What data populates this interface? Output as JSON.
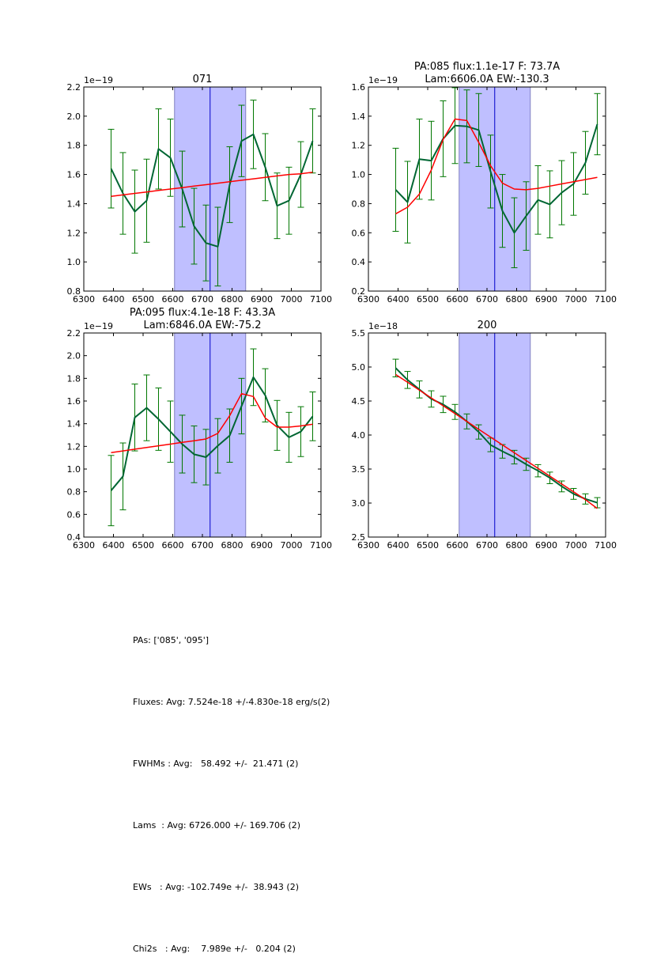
{
  "chart_data": [
    {
      "type": "line",
      "title": [
        "071"
      ],
      "xlabel": "",
      "ylabel": "",
      "offset_text": "1e−19",
      "xlim": [
        6300,
        7100
      ],
      "ylim": [
        0.8,
        2.2
      ],
      "xticks": [
        "6300",
        "6400",
        "6500",
        "6600",
        "6700",
        "6800",
        "6900",
        "7000",
        "7100"
      ],
      "yticks": [
        "0.8",
        "1.0",
        "1.2",
        "1.4",
        "1.6",
        "1.8",
        "2.0",
        "2.2"
      ],
      "ytick_values": [
        0.8,
        1.0,
        1.2,
        1.4,
        1.6,
        1.8,
        2.0,
        2.2
      ],
      "span": [
        6606,
        6846
      ],
      "vline": 6726,
      "x": [
        6392,
        6432,
        6472,
        6512,
        6552,
        6592,
        6632,
        6672,
        6712,
        6752,
        6792,
        6832,
        6872,
        6912,
        6952,
        6992,
        7032,
        7072
      ],
      "series": [
        {
          "name": "data",
          "color": "#006633",
          "values": [
            1.64,
            1.47,
            1.345,
            1.42,
            1.775,
            1.715,
            1.5,
            1.245,
            1.13,
            1.105,
            1.53,
            1.83,
            1.875,
            1.65,
            1.385,
            1.42,
            1.6,
            1.83
          ],
          "errors": [
            0.27,
            0.28,
            0.285,
            0.285,
            0.275,
            0.265,
            0.26,
            0.26,
            0.26,
            0.27,
            0.26,
            0.245,
            0.235,
            0.23,
            0.225,
            0.23,
            0.225,
            0.22
          ]
        },
        {
          "name": "fit",
          "color": "#ff0000",
          "values": [
            1.45,
            1.46,
            1.47,
            1.48,
            1.49,
            1.5,
            1.51,
            1.52,
            1.53,
            1.54,
            1.55,
            1.56,
            1.57,
            1.58,
            1.59,
            1.6,
            1.605,
            1.615
          ]
        }
      ],
      "grid": false
    },
    {
      "type": "line",
      "title": [
        "PA:085 flux:1.1e-17 F: 73.7A",
        "Lam:6606.0A EW:-130.3"
      ],
      "xlabel": "",
      "ylabel": "",
      "offset_text": "1e−19",
      "xlim": [
        6300,
        7100
      ],
      "ylim": [
        0.2,
        1.6
      ],
      "xticks": [
        "6300",
        "6400",
        "6500",
        "6600",
        "6700",
        "6800",
        "6900",
        "7000",
        "7100"
      ],
      "yticks": [
        "0.2",
        "0.4",
        "0.6",
        "0.8",
        "1.0",
        "1.2",
        "1.4",
        "1.6"
      ],
      "ytick_values": [
        0.2,
        0.4,
        0.6,
        0.8,
        1.0,
        1.2,
        1.4,
        1.6
      ],
      "span": [
        6606,
        6846
      ],
      "vline": 6726,
      "x": [
        6392,
        6432,
        6472,
        6512,
        6552,
        6592,
        6632,
        6672,
        6712,
        6752,
        6792,
        6832,
        6872,
        6912,
        6952,
        6992,
        7032,
        7072
      ],
      "series": [
        {
          "name": "data",
          "color": "#006633",
          "values": [
            0.895,
            0.81,
            1.105,
            1.095,
            1.245,
            1.335,
            1.33,
            1.305,
            1.02,
            0.75,
            0.6,
            0.715,
            0.825,
            0.795,
            0.875,
            0.935,
            1.08,
            1.345
          ],
          "errors": [
            0.285,
            0.28,
            0.275,
            0.27,
            0.26,
            0.26,
            0.25,
            0.25,
            0.25,
            0.25,
            0.24,
            0.235,
            0.235,
            0.23,
            0.22,
            0.215,
            0.215,
            0.21
          ]
        },
        {
          "name": "fit",
          "color": "#ff0000",
          "values": [
            0.73,
            0.775,
            0.865,
            1.03,
            1.24,
            1.38,
            1.37,
            1.22,
            1.06,
            0.94,
            0.9,
            0.895,
            0.905,
            0.92,
            0.935,
            0.95,
            0.965,
            0.98
          ]
        }
      ],
      "grid": false
    },
    {
      "type": "line",
      "title": [
        "PA:095 flux:4.1e-18 F: 43.3A",
        "Lam:6846.0A EW:-75.2"
      ],
      "xlabel": "",
      "ylabel": "",
      "offset_text": "1e−19",
      "xlim": [
        6300,
        7100
      ],
      "ylim": [
        0.4,
        2.2
      ],
      "xticks": [
        "6300",
        "6400",
        "6500",
        "6600",
        "6700",
        "6800",
        "6900",
        "7000",
        "7100"
      ],
      "yticks": [
        "0.4",
        "0.6",
        "0.8",
        "1.0",
        "1.2",
        "1.4",
        "1.6",
        "1.8",
        "2.0",
        "2.2"
      ],
      "ytick_values": [
        0.4,
        0.6,
        0.8,
        1.0,
        1.2,
        1.4,
        1.6,
        1.8,
        2.0,
        2.2
      ],
      "span": [
        6606,
        6846
      ],
      "vline": 6726,
      "x": [
        6392,
        6432,
        6472,
        6512,
        6552,
        6592,
        6632,
        6672,
        6712,
        6752,
        6792,
        6832,
        6872,
        6912,
        6952,
        6992,
        7032,
        7072
      ],
      "series": [
        {
          "name": "data",
          "color": "#006633",
          "values": [
            0.81,
            0.935,
            1.455,
            1.54,
            1.44,
            1.33,
            1.22,
            1.13,
            1.105,
            1.205,
            1.295,
            1.555,
            1.81,
            1.65,
            1.385,
            1.28,
            1.33,
            1.465
          ],
          "errors": [
            0.31,
            0.295,
            0.295,
            0.29,
            0.275,
            0.27,
            0.255,
            0.25,
            0.245,
            0.24,
            0.235,
            0.245,
            0.25,
            0.235,
            0.22,
            0.22,
            0.22,
            0.215
          ]
        },
        {
          "name": "fit",
          "color": "#ff0000",
          "values": [
            1.145,
            1.16,
            1.175,
            1.19,
            1.205,
            1.22,
            1.235,
            1.25,
            1.265,
            1.315,
            1.47,
            1.665,
            1.64,
            1.45,
            1.37,
            1.37,
            1.38,
            1.395
          ]
        }
      ],
      "grid": false
    },
    {
      "type": "line",
      "title": [
        "200"
      ],
      "xlabel": "",
      "ylabel": "",
      "offset_text": "1e−18",
      "xlim": [
        6300,
        7100
      ],
      "ylim": [
        2.5,
        5.5
      ],
      "xticks": [
        "6300",
        "6400",
        "6500",
        "6600",
        "6700",
        "6800",
        "6900",
        "7000",
        "7100"
      ],
      "yticks": [
        "2.5",
        "3.0",
        "3.5",
        "4.0",
        "4.5",
        "5.0",
        "5.5"
      ],
      "ytick_values": [
        2.5,
        3.0,
        3.5,
        4.0,
        4.5,
        5.0,
        5.5
      ],
      "span": [
        6606,
        6846
      ],
      "vline": 6726,
      "x": [
        6392,
        6432,
        6472,
        6512,
        6552,
        6592,
        6632,
        6672,
        6712,
        6752,
        6792,
        6832,
        6872,
        6912,
        6952,
        6992,
        7032,
        7072
      ],
      "series": [
        {
          "name": "data",
          "color": "#006633",
          "values": [
            4.985,
            4.81,
            4.67,
            4.53,
            4.45,
            4.34,
            4.2,
            4.045,
            3.855,
            3.76,
            3.675,
            3.57,
            3.475,
            3.37,
            3.245,
            3.135,
            3.06,
            3.005
          ],
          "errors": [
            0.13,
            0.125,
            0.125,
            0.12,
            0.12,
            0.11,
            0.11,
            0.105,
            0.1,
            0.1,
            0.1,
            0.09,
            0.09,
            0.085,
            0.08,
            0.08,
            0.075,
            0.075
          ]
        },
        {
          "name": "fit",
          "color": "#ff0000",
          "values": [
            4.89,
            4.775,
            4.66,
            4.545,
            4.43,
            4.315,
            4.2,
            4.085,
            3.97,
            3.855,
            3.74,
            3.625,
            3.51,
            3.395,
            3.28,
            3.165,
            3.05,
            2.92
          ]
        }
      ],
      "grid": false
    }
  ],
  "colors": {
    "data_line": "#006633",
    "errorbar": "#007700",
    "fit_line": "#ff0000",
    "span_fill": "#bfbfff",
    "span_edge": "#8080c0",
    "vline": "#0000cc"
  },
  "summary": {
    "lines": [
      "PAs: ['085', '095']",
      "Fluxes: Avg: 7.524e-18 +/-4.830e-18 erg/s(2)",
      "FWHMs : Avg:   58.492 +/-  21.471 (2)",
      "Lams  : Avg: 6726.000 +/- 169.706 (2)",
      "EWs   : Avg: -102.749e +/-  38.943 (2)",
      "Chi2s   : Avg:    7.989e +/-   0.204 (2)"
    ]
  }
}
